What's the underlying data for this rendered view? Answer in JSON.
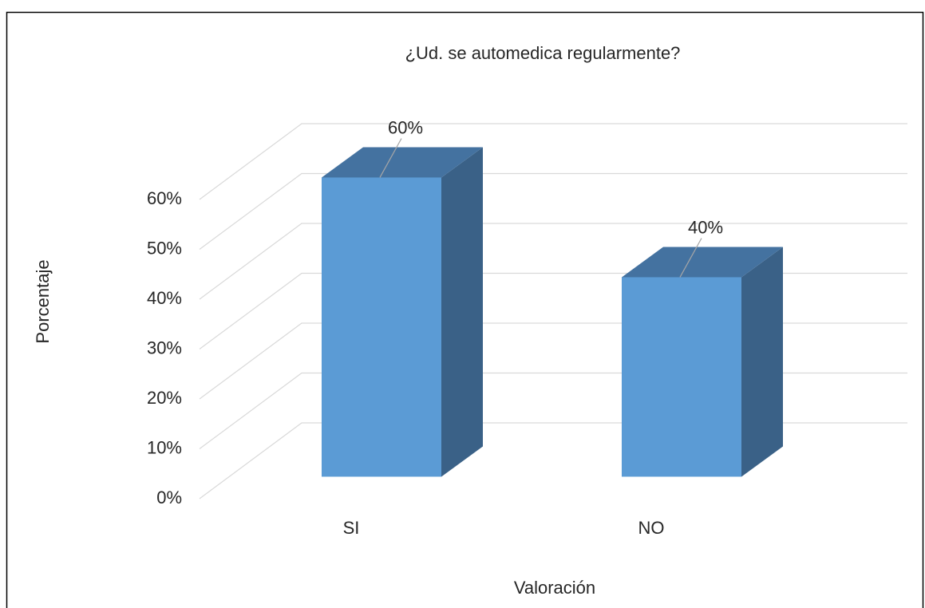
{
  "chart_data": {
    "type": "bar3d",
    "title": "¿Ud. se automedica regularmente?",
    "x_label": "Valoración",
    "y_label": "Porcentaje",
    "categories": [
      "SI",
      "NO"
    ],
    "values": [
      60,
      40
    ],
    "value_labels": [
      "60%",
      "40%"
    ],
    "color": "#5b9bd5",
    "ylim": [
      0,
      60
    ],
    "yticks": [
      {
        "value": 0,
        "label": "0%"
      },
      {
        "value": 10,
        "label": "10%"
      },
      {
        "value": 20,
        "label": "20%"
      },
      {
        "value": 30,
        "label": "30%"
      },
      {
        "value": 40,
        "label": "40%"
      },
      {
        "value": 50,
        "label": "50%"
      },
      {
        "value": 60,
        "label": "60%"
      }
    ],
    "grid": true
  }
}
